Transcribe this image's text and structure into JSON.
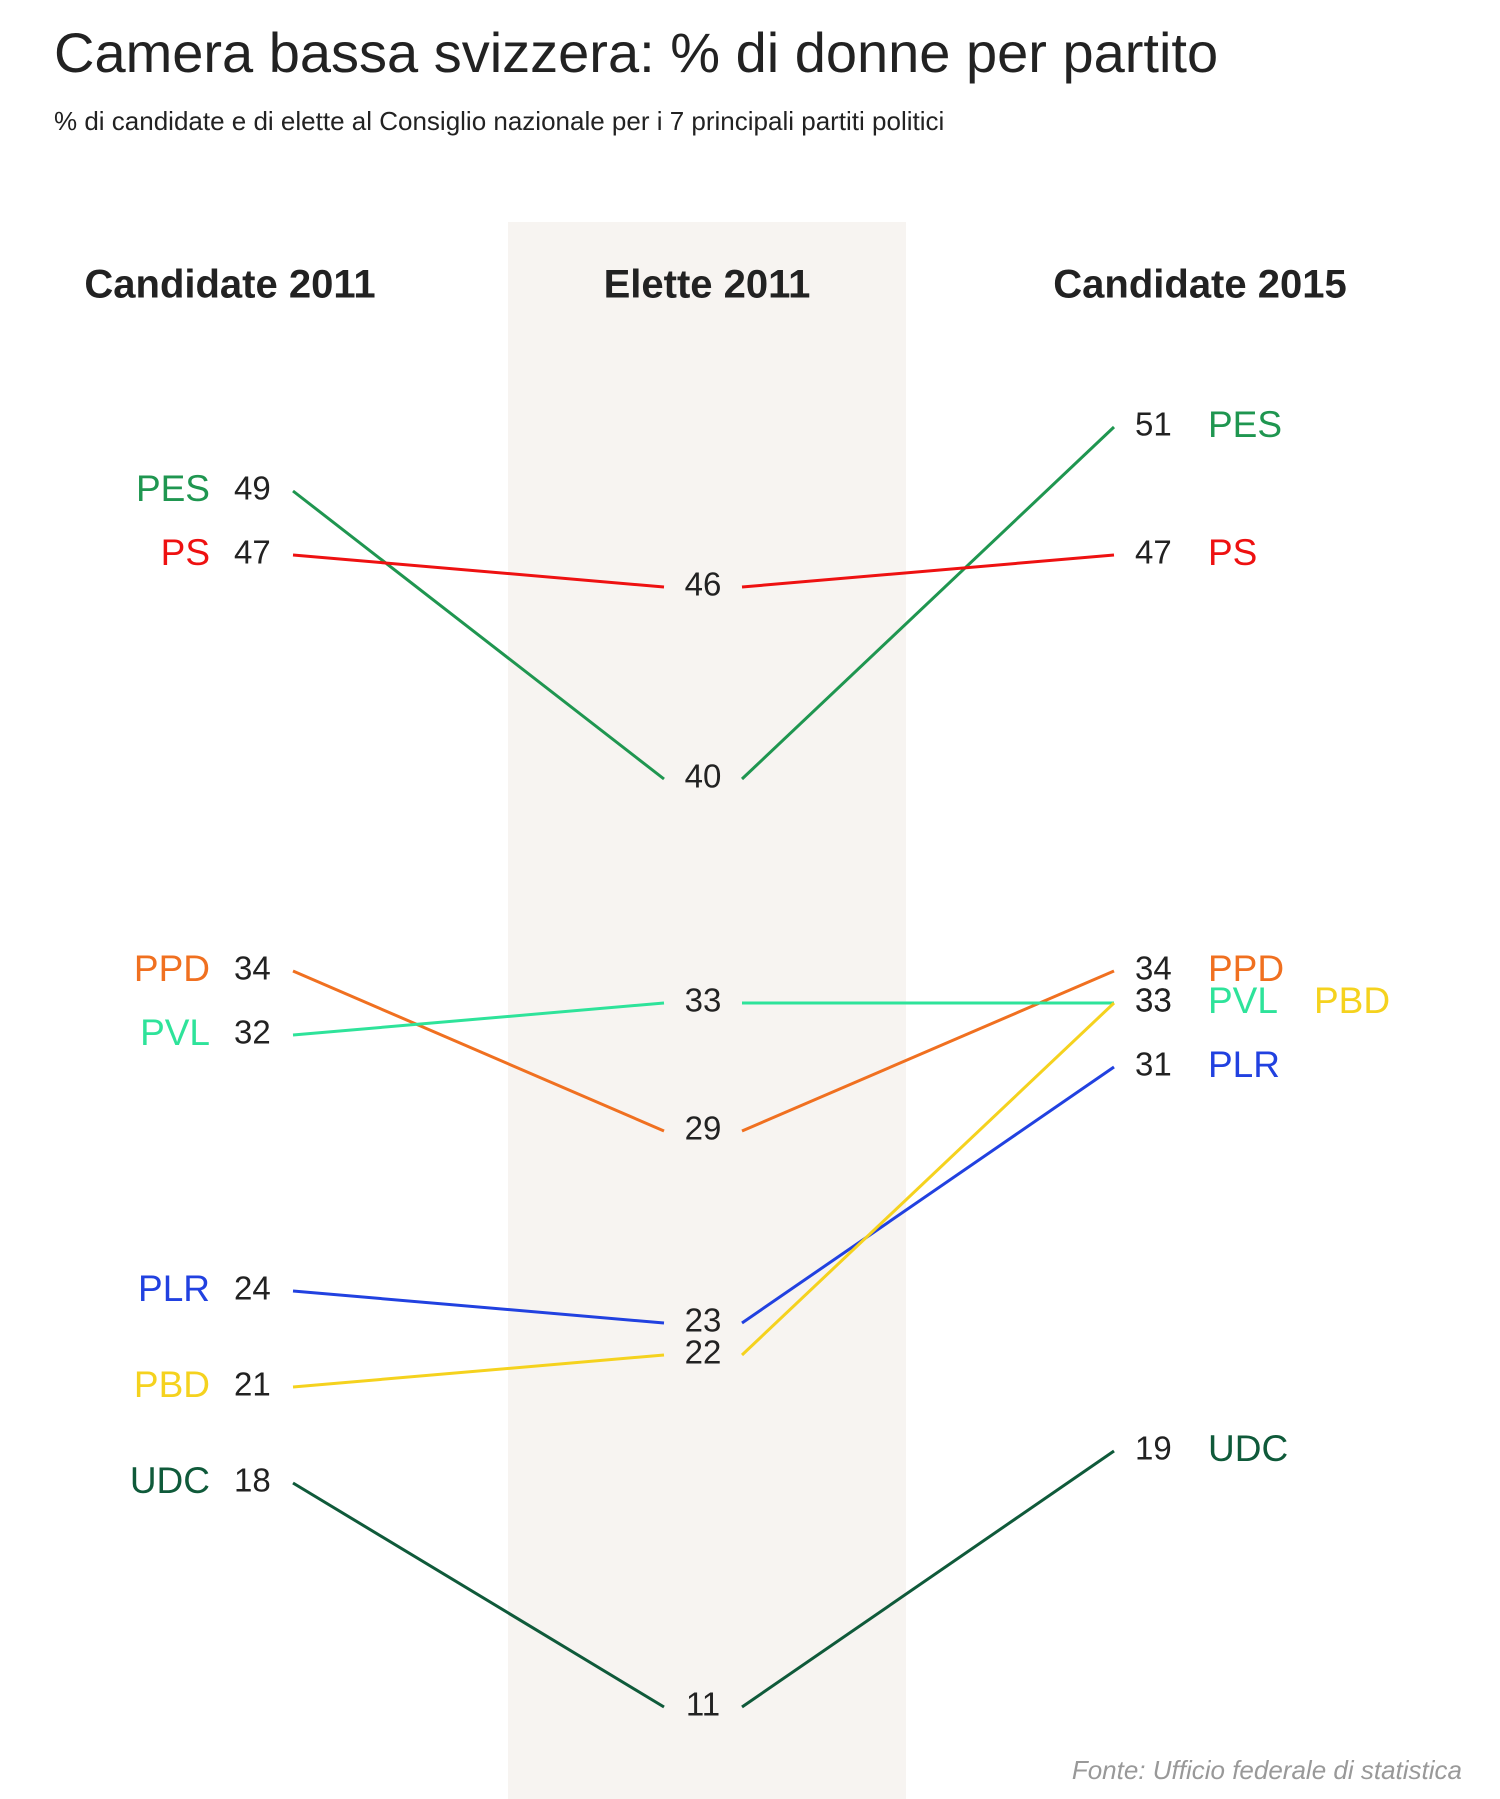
{
  "chart_data": {
    "type": "slope",
    "title": "Camera bassa svizzera: % di donne per partito",
    "subtitle": "% di candidate e di elette al Consiglio nazionale per i 7 principali partiti politici",
    "columns": [
      "Candidate 2011",
      "Elette 2011",
      "Candidate 2015"
    ],
    "series": [
      {
        "name": "PES",
        "color": "#1f9650",
        "values": [
          49,
          40,
          51
        ]
      },
      {
        "name": "PS",
        "color": "#ee1111",
        "values": [
          47,
          46,
          47
        ]
      },
      {
        "name": "PPD",
        "color": "#f07020",
        "values": [
          34,
          29,
          34
        ]
      },
      {
        "name": "PVL",
        "color": "#2ee39a",
        "values": [
          32,
          33,
          33
        ]
      },
      {
        "name": "PLR",
        "color": "#2141e0",
        "values": [
          24,
          23,
          31
        ]
      },
      {
        "name": "PBD",
        "color": "#f5d21e",
        "values": [
          21,
          22,
          33
        ]
      },
      {
        "name": "UDC",
        "color": "#0f5a3a",
        "values": [
          18,
          11,
          19
        ]
      }
    ],
    "source": "Fonte: Ufficio federale di statistica"
  }
}
